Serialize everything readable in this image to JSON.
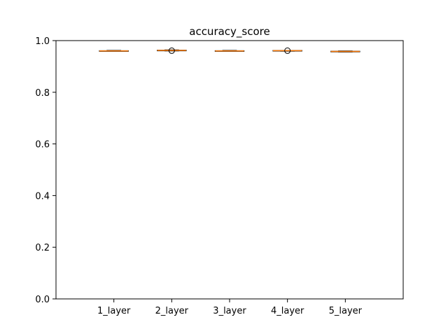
{
  "chart_data": {
    "type": "box",
    "title": "accuracy_score",
    "xlabel": "",
    "ylabel": "",
    "ylim": [
      0,
      1
    ],
    "yticks": [
      0.0,
      0.2,
      0.4,
      0.6,
      0.8,
      1.0
    ],
    "ytick_labels": [
      "0.0",
      "0.2",
      "0.4",
      "0.6",
      "0.8",
      "1.0"
    ],
    "grid": false,
    "categories": [
      "1_layer",
      "2_layer",
      "3_layer",
      "4_layer",
      "5_layer"
    ],
    "boxes": [
      {
        "min": 0.959,
        "q1": 0.96,
        "median": 0.96,
        "q3": 0.961,
        "max": 0.962,
        "outliers": []
      },
      {
        "min": 0.96,
        "q1": 0.961,
        "median": 0.962,
        "q3": 0.963,
        "max": 0.964,
        "outliers": [
          0.961
        ]
      },
      {
        "min": 0.959,
        "q1": 0.96,
        "median": 0.96,
        "q3": 0.961,
        "max": 0.962,
        "outliers": []
      },
      {
        "min": 0.959,
        "q1": 0.96,
        "median": 0.961,
        "q3": 0.962,
        "max": 0.962,
        "outliers": [
          0.961
        ]
      },
      {
        "min": 0.956,
        "q1": 0.957,
        "median": 0.958,
        "q3": 0.959,
        "max": 0.96,
        "outliers": []
      }
    ],
    "colors": {
      "box": "#000000",
      "median": "#ff7f0e",
      "outlier": "#000000"
    }
  }
}
